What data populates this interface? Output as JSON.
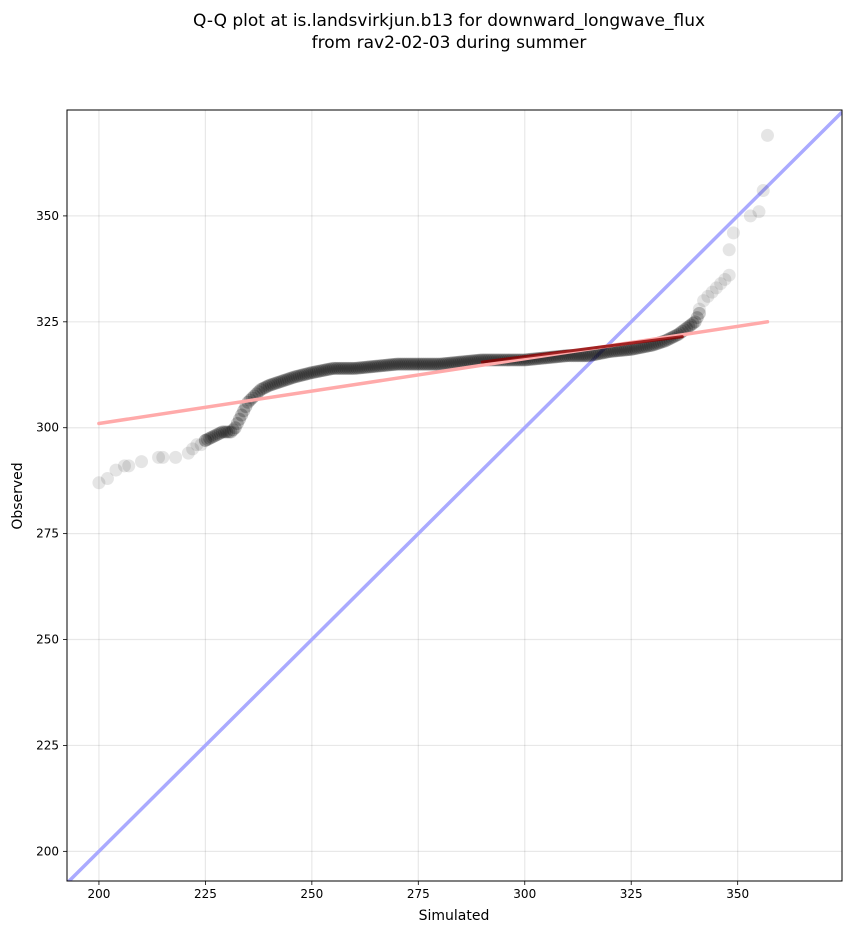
{
  "chart_data": {
    "type": "scatter",
    "title_lines": [
      "Q-Q plot at is.landsvirkjun.b13 for downward_longwave_flux",
      "from rav2-02-03 during summer"
    ],
    "xlabel": "Simulated",
    "ylabel": "Observed",
    "xlim": [
      192.5,
      374.5
    ],
    "ylim": [
      193,
      375
    ],
    "xticks": [
      200,
      225,
      250,
      275,
      300,
      325,
      350
    ],
    "yticks": [
      200,
      225,
      250,
      275,
      300,
      325,
      350
    ],
    "grid": true,
    "reference_line": {
      "label": "1:1",
      "from": [
        192.5,
        192.5
      ],
      "to": [
        374.5,
        374.5
      ],
      "color": "#aaaaff"
    },
    "fit_line": {
      "from": [
        200,
        301
      ],
      "to": [
        357,
        325
      ],
      "color": "#ffaaaa"
    },
    "fit_line_dark": {
      "from": [
        290,
        315.5
      ],
      "to": [
        337,
        321.5
      ],
      "color": "#8b0000"
    },
    "tail_points": [
      [
        200,
        287
      ],
      [
        202,
        288
      ],
      [
        204,
        290
      ],
      [
        206,
        291
      ],
      [
        207,
        291
      ],
      [
        210,
        292
      ],
      [
        214,
        293
      ],
      [
        215,
        293
      ],
      [
        218,
        293
      ],
      [
        221,
        294
      ],
      [
        222,
        295
      ],
      [
        223,
        296
      ],
      [
        224,
        296
      ],
      [
        225,
        297
      ],
      [
        341,
        328
      ],
      [
        342,
        330
      ],
      [
        343,
        331
      ],
      [
        344,
        332
      ],
      [
        345,
        333
      ],
      [
        346,
        334
      ],
      [
        347,
        335
      ],
      [
        348,
        336
      ],
      [
        348,
        342
      ],
      [
        349,
        346
      ],
      [
        353,
        350
      ],
      [
        355,
        351
      ],
      [
        356,
        356
      ],
      [
        357,
        369
      ]
    ],
    "dense_curve": [
      [
        225,
        297
      ],
      [
        227,
        298
      ],
      [
        229,
        299
      ],
      [
        231,
        299
      ],
      [
        232,
        300
      ],
      [
        233,
        302
      ],
      [
        234,
        304
      ],
      [
        235,
        306
      ],
      [
        236,
        307
      ],
      [
        238,
        309
      ],
      [
        240,
        310
      ],
      [
        243,
        311
      ],
      [
        246,
        312
      ],
      [
        250,
        313
      ],
      [
        255,
        314
      ],
      [
        260,
        314
      ],
      [
        265,
        314.5
      ],
      [
        270,
        315
      ],
      [
        275,
        315
      ],
      [
        280,
        315
      ],
      [
        285,
        315.5
      ],
      [
        290,
        316
      ],
      [
        295,
        316
      ],
      [
        300,
        316
      ],
      [
        305,
        316.5
      ],
      [
        310,
        317
      ],
      [
        315,
        317
      ],
      [
        320,
        318
      ],
      [
        325,
        318.5
      ],
      [
        330,
        319.5
      ],
      [
        333,
        320.5
      ],
      [
        336,
        322
      ],
      [
        338,
        323.5
      ],
      [
        340,
        325
      ],
      [
        341,
        327
      ]
    ],
    "point_color": "#000000"
  }
}
